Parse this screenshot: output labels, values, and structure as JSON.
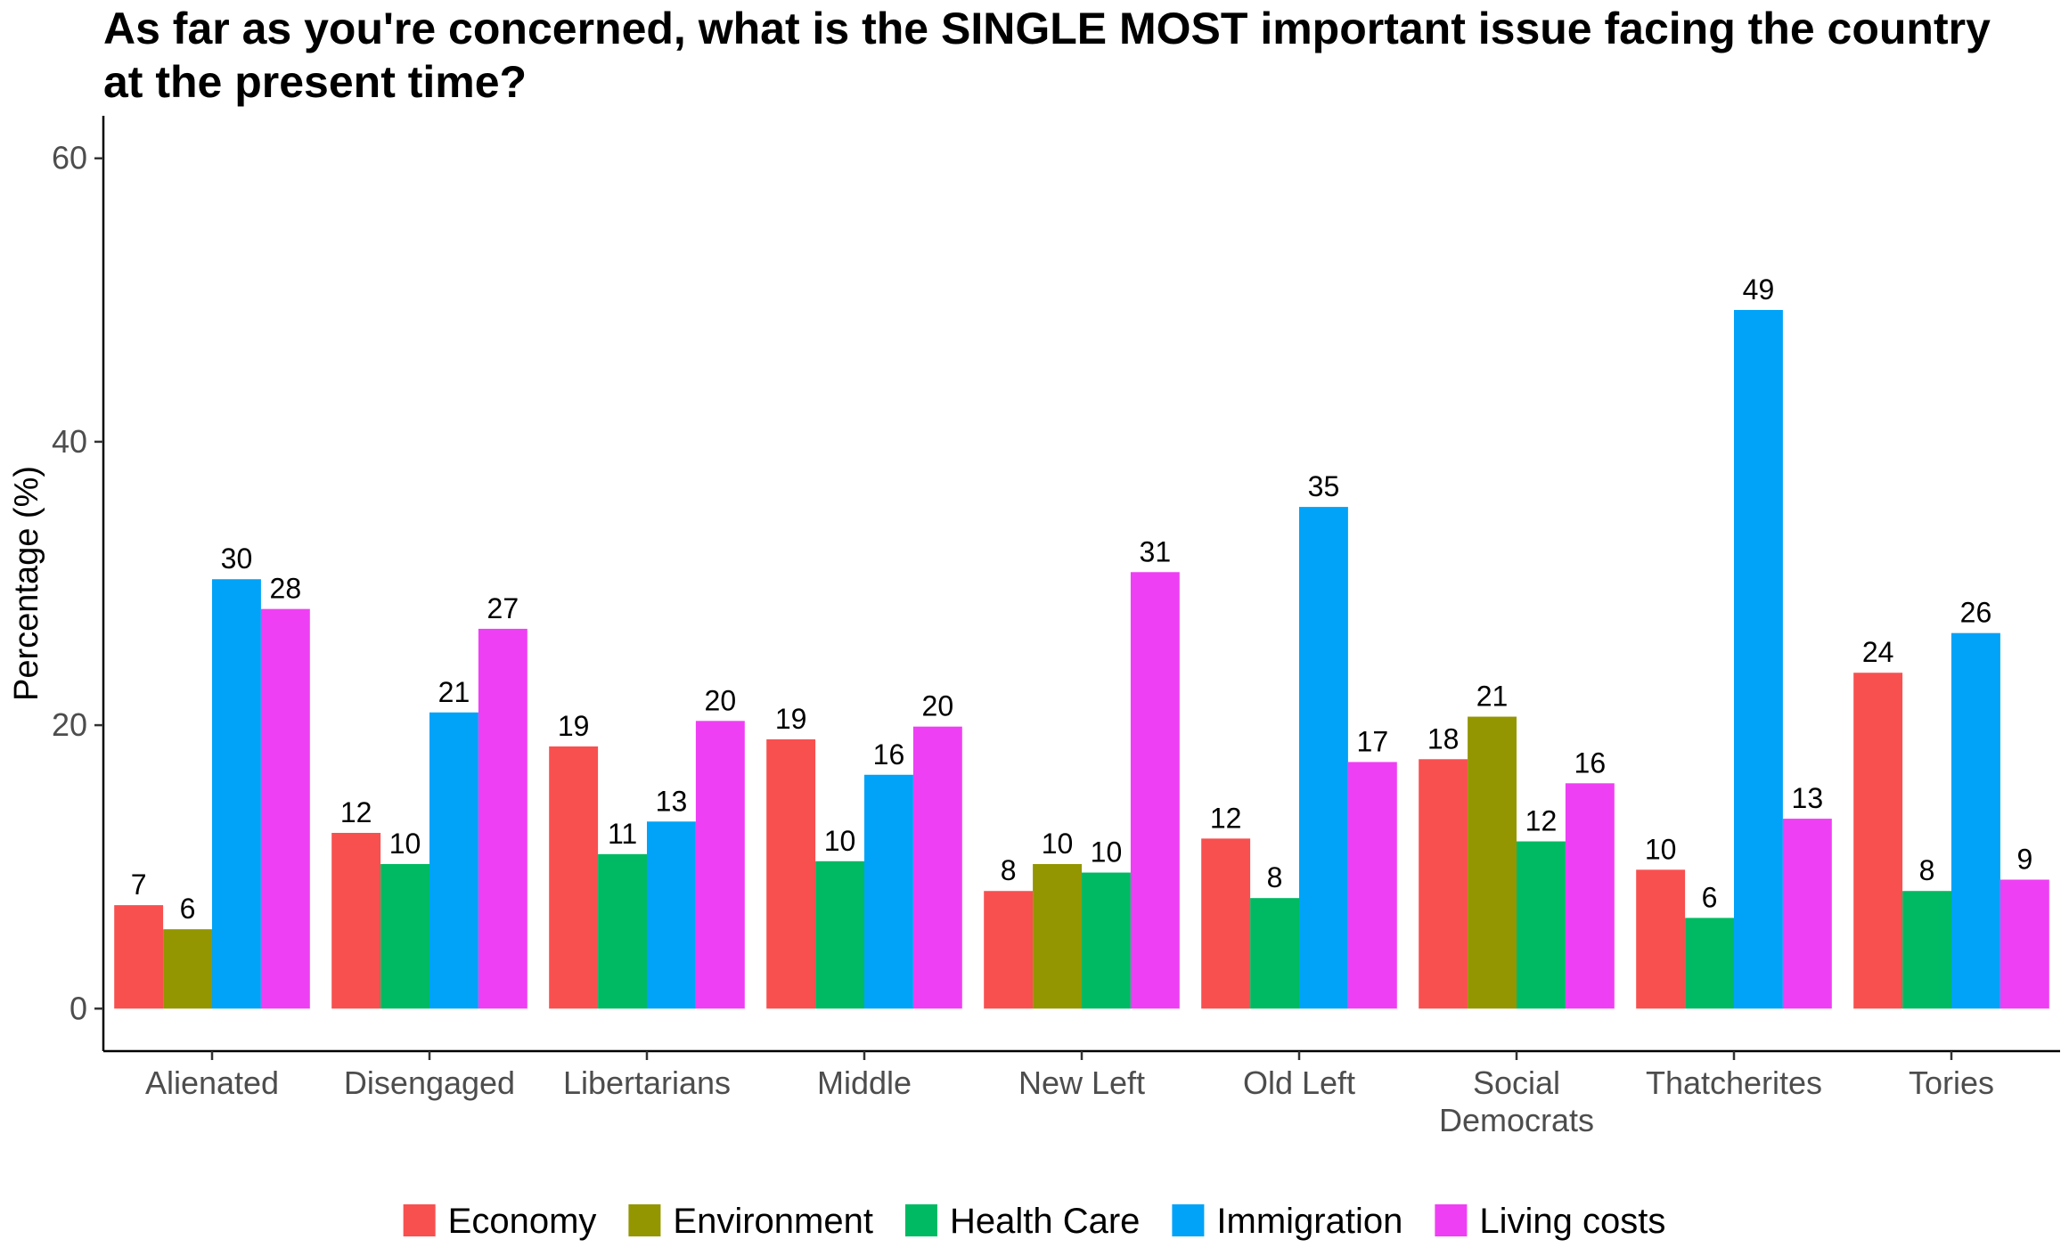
{
  "chart_data": {
    "type": "bar",
    "title": "As far as you're concerned, what is the SINGLE MOST important issue facing the country at the present time?",
    "xlabel": "",
    "ylabel": "Percentage (%)",
    "ylim": [
      -3,
      63
    ],
    "yticks": [
      0,
      20,
      40,
      60
    ],
    "grid": false,
    "legend_position": "bottom",
    "categories": [
      [
        "Alienated"
      ],
      [
        "Disengaged"
      ],
      [
        "Libertarians"
      ],
      [
        "Middle"
      ],
      [
        "New Left"
      ],
      [
        "Old Left"
      ],
      [
        "Social",
        "Democrats"
      ],
      [
        "Thatcherites"
      ],
      [
        "Tories"
      ]
    ],
    "series": [
      {
        "name": "Economy",
        "color": "#f8504f",
        "values": [
          7.3,
          12.4,
          18.5,
          19.0,
          8.3,
          12.0,
          17.6,
          9.8,
          23.7
        ],
        "labels": [
          "7",
          "12",
          "19",
          "19",
          "8",
          "12",
          "18",
          "10",
          "24"
        ]
      },
      {
        "name": "Environment",
        "color": "#939600",
        "values": [
          5.6,
          null,
          null,
          null,
          10.2,
          null,
          20.6,
          null,
          null
        ],
        "labels": [
          "6",
          "",
          "",
          "",
          "10",
          "",
          "21",
          "",
          ""
        ]
      },
      {
        "name": "Health Care",
        "color": "#00ba63",
        "values": [
          null,
          10.2,
          10.9,
          10.4,
          9.6,
          7.8,
          11.8,
          6.4,
          8.3
        ],
        "labels": [
          "",
          "10",
          "11",
          "10",
          "10",
          "8",
          "12",
          "6",
          "8"
        ]
      },
      {
        "name": "Immigration",
        "color": "#00a3f8",
        "values": [
          30.3,
          20.9,
          13.2,
          16.5,
          null,
          35.4,
          null,
          49.3,
          26.5
        ],
        "labels": [
          "30",
          "21",
          "13",
          "16",
          "",
          "35",
          "",
          "49",
          "26"
        ]
      },
      {
        "name": "Living costs",
        "color": "#ef3ff4",
        "values": [
          28.2,
          26.8,
          20.3,
          19.9,
          30.8,
          17.4,
          15.9,
          13.4,
          9.1
        ],
        "labels": [
          "28",
          "27",
          "20",
          "20",
          "31",
          "17",
          "16",
          "13",
          "9"
        ]
      }
    ]
  }
}
